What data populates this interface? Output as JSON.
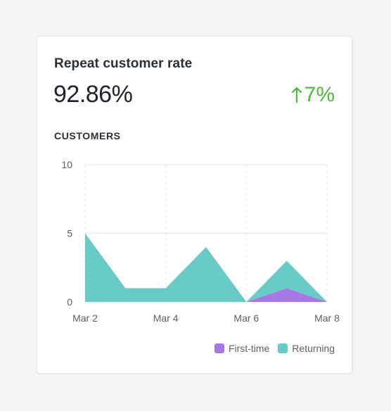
{
  "card": {
    "title": "Repeat customer rate",
    "value": "92.86%",
    "change": "7%",
    "change_icon": "arrow-up-icon",
    "section_label": "CUSTOMERS"
  },
  "colors": {
    "first_time": "#a777e3",
    "returning": "#68cbc8",
    "positive": "#50b83c"
  },
  "chart_data": {
    "type": "area",
    "stacked": true,
    "x": [
      "Mar 2",
      "Mar 3",
      "Mar 4",
      "Mar 5",
      "Mar 6",
      "Mar 7",
      "Mar 8"
    ],
    "x_tick_labels": [
      "Mar 2",
      "Mar 4",
      "Mar 6",
      "Mar 8"
    ],
    "y_ticks": [
      "0",
      "5",
      "10"
    ],
    "ylim": [
      0,
      10
    ],
    "grid": true,
    "legend_position": "bottom-right",
    "series": [
      {
        "name": "First-time",
        "values": [
          0,
          0,
          0,
          0,
          0,
          1,
          0
        ]
      },
      {
        "name": "Returning",
        "values": [
          5,
          1,
          1,
          4,
          0,
          2,
          0
        ]
      }
    ]
  },
  "legend": {
    "first_time": "First-time",
    "returning": "Returning"
  }
}
